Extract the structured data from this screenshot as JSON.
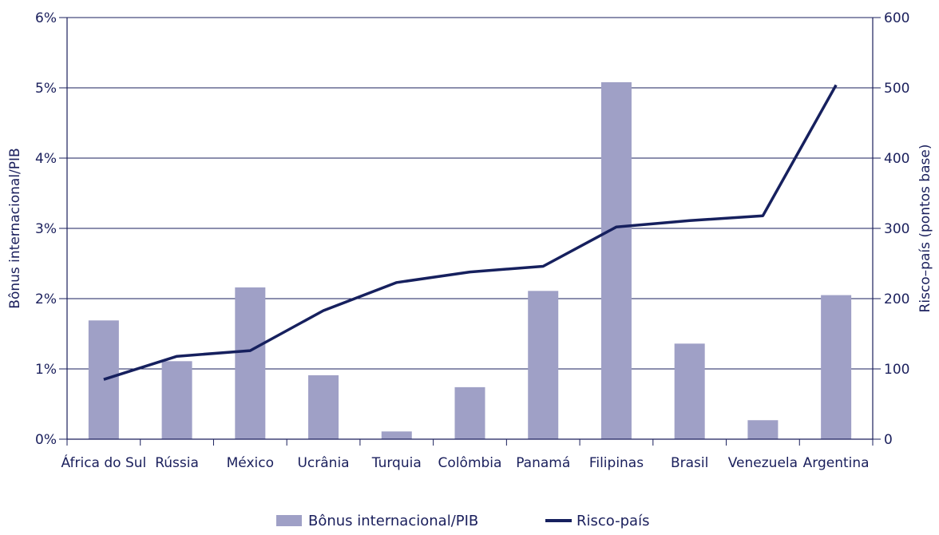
{
  "chart_data": {
    "type": "bar",
    "categories": [
      "África do Sul",
      "Rússia",
      "México",
      "Ucrânia",
      "Turquia",
      "Colômbia",
      "Panamá",
      "Filipinas",
      "Brasil",
      "Venezuela",
      "Argentina"
    ],
    "series": [
      {
        "name": "Bônus internacional/PIB",
        "type": "bar",
        "axis": "left",
        "color": "#9fa0c6",
        "values": [
          1.69,
          1.11,
          2.16,
          0.91,
          0.11,
          0.74,
          2.11,
          5.08,
          1.36,
          0.27,
          2.05
        ]
      },
      {
        "name": "Risco-país",
        "type": "line",
        "axis": "right",
        "color": "#16205e",
        "values": [
          85,
          118,
          126,
          183,
          223,
          238,
          246,
          302,
          311,
          318,
          504
        ]
      }
    ],
    "ylabel": "Bônus internacional/PIB",
    "ylim": [
      0,
      6
    ],
    "yticks": [
      "0%",
      "1%",
      "2%",
      "3%",
      "4%",
      "5%",
      "6%"
    ],
    "ylabel_right": "Risco–país (pontos base)",
    "ylim_right": [
      0,
      600
    ],
    "yticks_right": [
      "0",
      "100",
      "200",
      "300",
      "400",
      "500",
      "600"
    ],
    "grid": true,
    "legend": "bottom-center"
  }
}
